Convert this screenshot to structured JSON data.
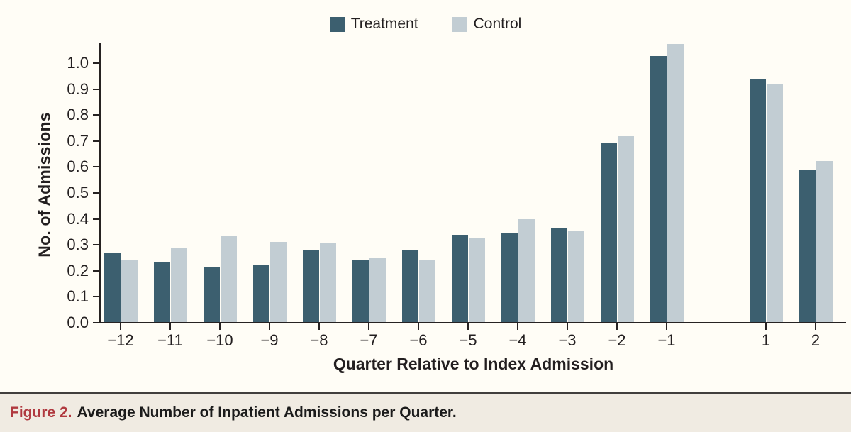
{
  "chart_data": {
    "type": "bar",
    "title": "",
    "categories": [
      -12,
      -11,
      -10,
      -9,
      -8,
      -7,
      -6,
      -5,
      -4,
      -3,
      -2,
      -1,
      1,
      2
    ],
    "series": [
      {
        "name": "Treatment",
        "color": "#3c5f6f",
        "values": [
          0.265,
          0.23,
          0.21,
          0.222,
          0.277,
          0.238,
          0.279,
          0.335,
          0.345,
          0.36,
          0.69,
          1.025,
          0.935,
          0.588
        ]
      },
      {
        "name": "Control",
        "color": "#c2cdd3",
        "values": [
          0.241,
          0.284,
          0.334,
          0.308,
          0.303,
          0.247,
          0.24,
          0.322,
          0.395,
          0.35,
          0.715,
          1.07,
          0.915,
          0.62
        ]
      }
    ],
    "xlabel": "Quarter Relative to Index Admission",
    "ylabel": "No. of Admissions",
    "ylim": [
      0.0,
      1.1
    ],
    "yticks": [
      0.0,
      0.1,
      0.2,
      0.3,
      0.4,
      0.5,
      0.6,
      0.7,
      0.8,
      0.9,
      1.0
    ],
    "x_gap_note": "no bars at quarter 0 (index admission); slot left empty between -1 and 1",
    "grid": false,
    "legend_position": "top-center"
  },
  "caption": {
    "label": "Figure 2.",
    "text": "Average Number of Inpatient Admissions per Quarter."
  },
  "colors": {
    "treatment": "#3c5f6f",
    "control": "#c2cdd3",
    "background": "#fffdf6",
    "caption_background": "#f0ebe2",
    "caption_label_red": "#b0393f",
    "axis": "#262222"
  }
}
